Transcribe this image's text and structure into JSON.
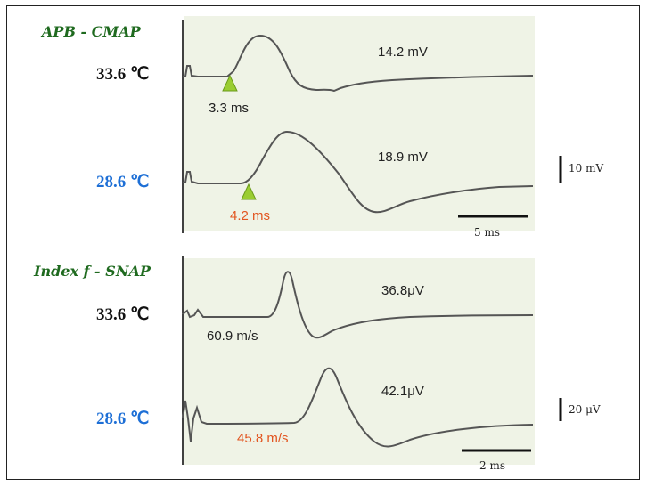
{
  "cmap": {
    "title": "APB - CMAP",
    "warm_temp": "33.6 ℃",
    "cool_temp": "28.6 ℃",
    "warm_amp": "14.2 mV",
    "cool_amp": "18.9 mV",
    "warm_latency": "3.3 ms",
    "cool_latency": "4.2 ms",
    "amp_scale": "10 mV",
    "time_scale": "5 ms"
  },
  "snap": {
    "title": "Index f - SNAP",
    "warm_temp": "33.6 ℃",
    "cool_temp": "28.6 ℃",
    "warm_amp": "36.8μV",
    "cool_amp": "42.1μV",
    "warm_velocity": "60.9 m/s",
    "cool_velocity": "45.8 m/s",
    "amp_scale": "20 μV",
    "time_scale": "2 ms"
  },
  "colors": {
    "trace": "#555555",
    "warm_text": "#111111",
    "cool_text": "#1d6fd6",
    "highlight": "#e25520",
    "title": "#1f6a1f",
    "marker": "#9acd32",
    "panel_bg": "#eff3e6"
  }
}
